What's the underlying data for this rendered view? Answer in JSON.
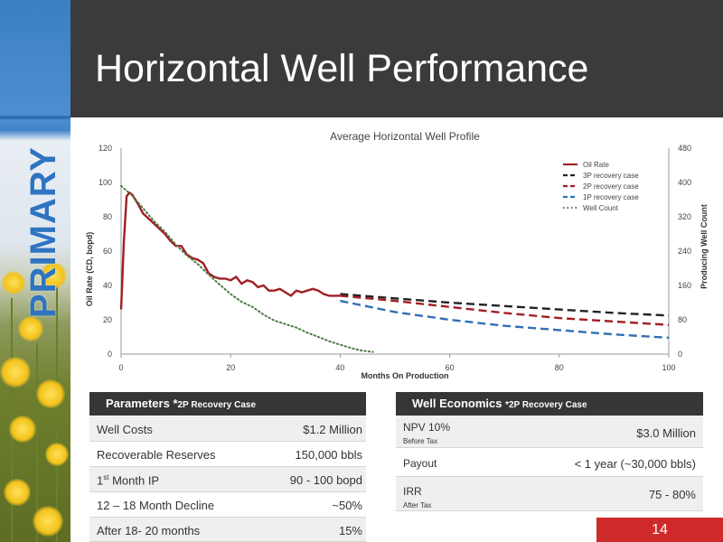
{
  "sidebar": {
    "label": "PRIMARY"
  },
  "header": {
    "title": "Horizontal Well Performance"
  },
  "chart_data": {
    "type": "line",
    "title": "Average Horizontal Well  Profile",
    "xlabel": "Months On Production",
    "ylabel": "Oil Rate (CD, bopd)",
    "y2label": "Producing Well Count",
    "xlim": [
      0,
      100
    ],
    "ylim": [
      0,
      120
    ],
    "y2lim": [
      0,
      480
    ],
    "xticks": [
      0,
      20,
      40,
      60,
      80,
      100
    ],
    "yticks": [
      0,
      20,
      40,
      60,
      80,
      100,
      120
    ],
    "y2ticks": [
      0,
      80,
      160,
      240,
      320,
      400,
      480
    ],
    "grid": false,
    "legend": "top-right",
    "series": [
      {
        "name": "Oil Rate",
        "color": "#a11f24",
        "style": "solid",
        "axis": "left",
        "x": [
          0,
          0.5,
          1,
          1.5,
          2,
          3,
          4,
          5,
          6,
          7,
          8,
          9,
          10,
          11,
          12,
          13,
          14,
          15,
          16,
          17,
          18,
          19,
          20,
          21,
          22,
          23,
          24,
          25,
          26,
          27,
          28,
          29,
          30,
          31,
          32,
          33,
          34,
          35,
          36,
          37,
          38,
          39,
          40
        ],
        "y": [
          26,
          65,
          92,
          94,
          93,
          88,
          82,
          79,
          76,
          73,
          70,
          66,
          63,
          63,
          58,
          56,
          55,
          53,
          47,
          45,
          44,
          44,
          43,
          45,
          41,
          43,
          42,
          39,
          40,
          37,
          37,
          38,
          36,
          34,
          37,
          36,
          37,
          38,
          37,
          35,
          34,
          34,
          34
        ]
      },
      {
        "name": "3P recovery case",
        "color": "#222222",
        "style": "dash",
        "axis": "left",
        "x": [
          40,
          50,
          60,
          70,
          80,
          90,
          100
        ],
        "y": [
          35,
          32.5,
          30,
          28,
          26,
          24,
          22.5
        ]
      },
      {
        "name": "2P recovery case",
        "color": "#a11f24",
        "style": "dash",
        "axis": "left",
        "x": [
          40,
          50,
          60,
          70,
          80,
          90,
          100
        ],
        "y": [
          34,
          31,
          27.5,
          24,
          21,
          19,
          17
        ]
      },
      {
        "name": "1P recovery case",
        "color": "#2f6fb6",
        "style": "dash",
        "axis": "left",
        "x": [
          40,
          50,
          60,
          70,
          80,
          90,
          100
        ],
        "y": [
          31,
          24.5,
          20,
          16.5,
          14,
          11.5,
          9.5
        ]
      },
      {
        "name": "Well Count",
        "color": "#4e7a45",
        "style": "dot",
        "axis": "right",
        "x": [
          0,
          2,
          4,
          6,
          8,
          10,
          12,
          14,
          16,
          18,
          20,
          22,
          24,
          26,
          28,
          30,
          32,
          34,
          36,
          38,
          40,
          42,
          44,
          46
        ],
        "y": [
          392,
          370,
          340,
          310,
          285,
          255,
          230,
          210,
          185,
          162,
          140,
          122,
          110,
          92,
          78,
          70,
          62,
          50,
          40,
          30,
          22,
          14,
          8,
          5
        ]
      }
    ]
  },
  "params": {
    "title": "Parameters *",
    "title_suffix": "2P Recovery Case",
    "rows": [
      {
        "label": "Well Costs",
        "value": "$1.2 Million"
      },
      {
        "label": "Recoverable Reserves",
        "value": "150,000 bbls"
      },
      {
        "label_pre": "1",
        "label_sup": "st",
        "label_post": " Month IP",
        "value": "90 - 100  bopd"
      },
      {
        "label": "12 – 18 Month Decline",
        "value": "~50%"
      },
      {
        "label": "After 18- 20 months",
        "value": "15%"
      }
    ]
  },
  "economics": {
    "title": "Well Economics",
    "title_suffix": "*2P Recovery Case",
    "rows": [
      {
        "label": "NPV 10%",
        "sub": "Before Tax",
        "value": "$3.0 Million"
      },
      {
        "label": "Payout",
        "sub": "",
        "value": "< 1 year (~30,000 bbls)"
      },
      {
        "label": "IRR",
        "sub": "After Tax",
        "value": "75 - 80%"
      }
    ]
  },
  "page_number": "14"
}
